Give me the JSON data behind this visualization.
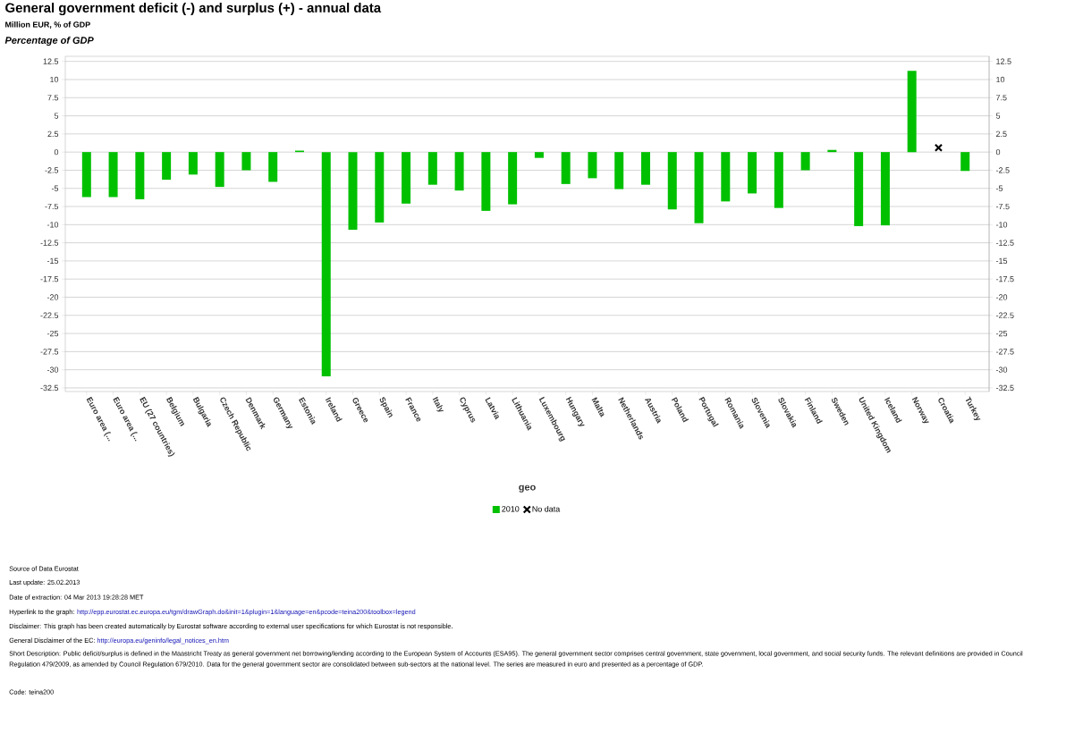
{
  "chart_data": {
    "type": "bar",
    "title": "General government deficit (-) and surplus (+) - annual data",
    "subtitle": "Million EUR, % of GDP",
    "ylabel": "Percentage of GDP",
    "xlabel": "geo",
    "categories": [
      "Euro area (...",
      "Euro area (...",
      "EU (27 countries)",
      "Belgium",
      "Bulgaria",
      "Czech Republic",
      "Denmark",
      "Germany",
      "Estonia",
      "Ireland",
      "Greece",
      "Spain",
      "France",
      "Italy",
      "Cyprus",
      "Latvia",
      "Lithuania",
      "Luxembourg",
      "Hungary",
      "Malta",
      "Netherlands",
      "Austria",
      "Poland",
      "Portugal",
      "Romania",
      "Slovenia",
      "Slovakia",
      "Finland",
      "Sweden",
      "United Kingdom",
      "Iceland",
      "Norway",
      "Croatia",
      "Turkey"
    ],
    "series": [
      {
        "name": "2010",
        "color": "#00c000",
        "values": [
          -6.2,
          -6.2,
          -6.5,
          -3.8,
          -3.1,
          -4.8,
          -2.5,
          -4.1,
          0.2,
          -30.9,
          -10.7,
          -9.7,
          -7.1,
          -4.5,
          -5.3,
          -8.1,
          -7.2,
          -0.8,
          -4.4,
          -3.6,
          -5.1,
          -4.5,
          -7.9,
          -9.8,
          -6.8,
          -5.7,
          -7.7,
          -2.5,
          0.3,
          -10.2,
          -10.1,
          11.2,
          null,
          -2.6
        ]
      },
      {
        "name": "No data",
        "type": "scatter",
        "marker": "cross",
        "color": "#000000",
        "x": [
          "Croatia"
        ],
        "values": [
          0.6
        ]
      }
    ],
    "ylim": [
      -33,
      13.2
    ],
    "yticks": [
      12.5,
      10,
      7.5,
      5,
      2.5,
      0,
      -2.5,
      -5,
      -7.5,
      -10,
      -12.5,
      -15,
      -17.5,
      -20,
      -22.5,
      -25,
      -27.5,
      -30,
      -32.5
    ],
    "y2lim": [
      -33,
      13.2
    ],
    "y2ticks": [
      12.5,
      10,
      7.5,
      5,
      2.5,
      0,
      -2.5,
      -5,
      -7.5,
      -10,
      -12.5,
      -15,
      -17.5,
      -20,
      -22.5,
      -25,
      -27.5,
      -30,
      -32.5
    ],
    "grid": "y",
    "legend": "bottom",
    "annotations": [
      "Source of Data Eurostat",
      "Last update: 25.02.2013",
      "Date of extraction: 04 Mar 2013 19:28:28 MET",
      "Hyperlink to the graph: ",
      "http://epp.eurostat.ec.europa.eu/tgm/drawGraph.do&init=1&plugin=1&language=en&pcode=teina200&toolbox=legend",
      "Disclaimer: This graph has been created automatically by Eurostat software according to external user specifications for which Eurostat is not responsible.",
      "General Disclaimer of the EC: ",
      "http://europa.eu/geninfo/legal_notices_en.htm",
      "Short Description: Public deficit/surplus is defined in the Maastricht Treaty as general government net borrowing/lending according to the European System of Accounts (ESA95). The general government sector comprises central government, state government, local government, and social security funds. The relevant definitions are provided in Council Regulation 479/2009, as amended by Council Regulation 679/2010. Data for the general government sector are consolidated between sub-sectors at the national level. The series are measured in euro and presented as a percentage of GDP.",
      "Code: teina200"
    ]
  }
}
